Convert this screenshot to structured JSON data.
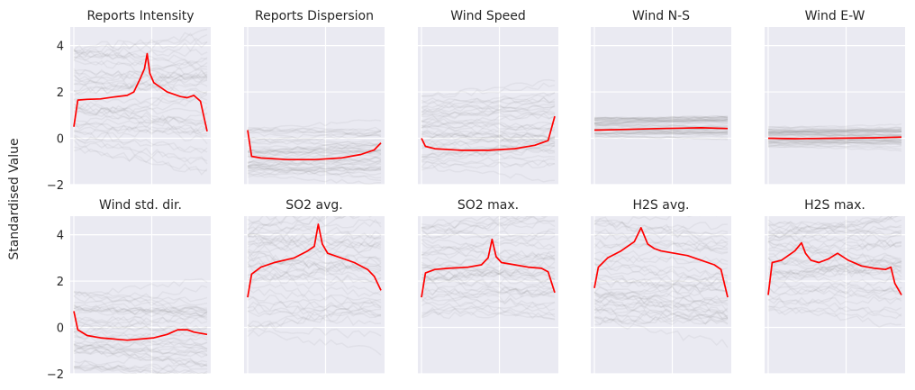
{
  "figure": {
    "ylabel": "Standardised Value",
    "background": "#eaeaf2",
    "grid_color": "#ffffff",
    "mean_color": "#ff0000",
    "trace_color": "#808080"
  },
  "chart_data": [
    {
      "type": "line",
      "title": "Reports Intensity",
      "ylim": [
        -2,
        4.8
      ],
      "yticks": [
        -2,
        0,
        2,
        4
      ],
      "grid": true,
      "x": [
        0,
        0.03,
        0.1,
        0.2,
        0.3,
        0.4,
        0.45,
        0.5,
        0.53,
        0.55,
        0.57,
        0.6,
        0.7,
        0.8,
        0.85,
        0.9,
        0.95,
        1
      ],
      "series": [
        {
          "name": "",
          "values": [
            0.5,
            1.65,
            1.68,
            1.7,
            1.78,
            1.85,
            2.0,
            2.6,
            3.0,
            3.65,
            2.8,
            2.4,
            2.0,
            1.8,
            1.75,
            1.85,
            1.6,
            0.3
          ]
        }
      ],
      "band": [
        -0.6,
        3.9
      ]
    },
    {
      "type": "line",
      "title": "Reports Dispersion",
      "ylim": [
        -2,
        4.8
      ],
      "yticks": [
        -2,
        0,
        2,
        4
      ],
      "grid": true,
      "x": [
        0,
        0.03,
        0.1,
        0.3,
        0.5,
        0.7,
        0.85,
        0.95,
        1
      ],
      "series": [
        {
          "name": "",
          "values": [
            0.35,
            -0.78,
            -0.85,
            -0.92,
            -0.92,
            -0.85,
            -0.7,
            -0.5,
            -0.2
          ]
        }
      ],
      "band": [
        -1.6,
        0.5
      ]
    },
    {
      "type": "line",
      "title": "Wind Speed",
      "ylim": [
        -2,
        4.8
      ],
      "yticks": [
        -2,
        0,
        2,
        4
      ],
      "grid": true,
      "x": [
        0,
        0.03,
        0.1,
        0.3,
        0.5,
        0.7,
        0.85,
        0.95,
        1
      ],
      "series": [
        {
          "name": "",
          "values": [
            0.0,
            -0.35,
            -0.45,
            -0.52,
            -0.52,
            -0.45,
            -0.3,
            -0.1,
            0.95
          ]
        }
      ],
      "band": [
        -1.3,
        1.8
      ]
    },
    {
      "type": "line",
      "title": "Wind N-S",
      "ylim": [
        -2,
        4.8
      ],
      "yticks": [
        -2,
        0,
        2,
        4
      ],
      "grid": true,
      "x": [
        0,
        0.2,
        0.5,
        0.8,
        1
      ],
      "series": [
        {
          "name": "",
          "values": [
            0.35,
            0.38,
            0.42,
            0.45,
            0.42
          ]
        }
      ],
      "band": [
        0.0,
        0.9
      ]
    },
    {
      "type": "line",
      "title": "Wind E-W",
      "ylim": [
        -2,
        4.8
      ],
      "yticks": [
        -2,
        0,
        2,
        4
      ],
      "grid": true,
      "x": [
        0,
        0.2,
        0.5,
        0.8,
        1
      ],
      "series": [
        {
          "name": "",
          "values": [
            0.0,
            -0.02,
            0.0,
            0.02,
            0.05
          ]
        }
      ],
      "band": [
        -0.4,
        0.5
      ]
    },
    {
      "type": "line",
      "title": "Wind std. dir.",
      "ylim": [
        -2,
        4.8
      ],
      "yticks": [
        -2,
        0,
        2,
        4
      ],
      "grid": true,
      "x": [
        0,
        0.03,
        0.1,
        0.2,
        0.4,
        0.6,
        0.7,
        0.78,
        0.85,
        0.9,
        1
      ],
      "series": [
        {
          "name": "",
          "values": [
            0.7,
            -0.1,
            -0.35,
            -0.45,
            -0.55,
            -0.45,
            -0.3,
            -0.1,
            -0.1,
            -0.2,
            -0.3
          ]
        }
      ],
      "band": [
        -1.8,
        1.6
      ]
    },
    {
      "type": "line",
      "title": "SO2 avg.",
      "ylim": [
        -2,
        4.8
      ],
      "yticks": [
        -2,
        0,
        2,
        4
      ],
      "grid": true,
      "x": [
        0,
        0.03,
        0.1,
        0.2,
        0.35,
        0.45,
        0.5,
        0.53,
        0.56,
        0.6,
        0.7,
        0.8,
        0.9,
        0.95,
        1
      ],
      "series": [
        {
          "name": "",
          "values": [
            1.3,
            2.3,
            2.6,
            2.8,
            3.0,
            3.3,
            3.5,
            4.45,
            3.6,
            3.2,
            3.0,
            2.8,
            2.5,
            2.2,
            1.6
          ]
        }
      ],
      "band": [
        -0.3,
        4.6
      ]
    },
    {
      "type": "line",
      "title": "SO2 max.",
      "ylim": [
        -2,
        4.8
      ],
      "yticks": [
        -2,
        0,
        2,
        4
      ],
      "grid": true,
      "x": [
        0,
        0.03,
        0.1,
        0.2,
        0.35,
        0.45,
        0.5,
        0.53,
        0.56,
        0.6,
        0.7,
        0.8,
        0.9,
        0.95,
        1
      ],
      "series": [
        {
          "name": "",
          "values": [
            1.3,
            2.35,
            2.5,
            2.55,
            2.6,
            2.7,
            3.0,
            3.8,
            3.05,
            2.8,
            2.7,
            2.6,
            2.55,
            2.4,
            1.5
          ]
        }
      ],
      "band": [
        0.5,
        4.5
      ]
    },
    {
      "type": "line",
      "title": "H2S avg.",
      "ylim": [
        -2,
        4.8
      ],
      "yticks": [
        -2,
        0,
        2,
        4
      ],
      "grid": true,
      "x": [
        0,
        0.03,
        0.1,
        0.2,
        0.3,
        0.35,
        0.4,
        0.45,
        0.5,
        0.6,
        0.7,
        0.8,
        0.9,
        0.95,
        1
      ],
      "series": [
        {
          "name": "",
          "values": [
            1.7,
            2.6,
            3.0,
            3.3,
            3.7,
            4.3,
            3.6,
            3.4,
            3.3,
            3.2,
            3.1,
            2.9,
            2.7,
            2.5,
            1.3
          ]
        }
      ],
      "band": [
        0.2,
        4.7
      ]
    },
    {
      "type": "line",
      "title": "H2S max.",
      "ylim": [
        -2,
        4.8
      ],
      "yticks": [
        -2,
        0,
        2,
        4
      ],
      "grid": true,
      "x": [
        0,
        0.03,
        0.1,
        0.2,
        0.25,
        0.28,
        0.32,
        0.38,
        0.45,
        0.52,
        0.6,
        0.7,
        0.8,
        0.88,
        0.92,
        0.95,
        1
      ],
      "series": [
        {
          "name": "",
          "values": [
            1.4,
            2.8,
            2.9,
            3.3,
            3.65,
            3.2,
            2.9,
            2.8,
            2.95,
            3.2,
            2.9,
            2.65,
            2.55,
            2.5,
            2.6,
            1.9,
            1.4
          ]
        }
      ],
      "band": [
        0.5,
        4.7
      ]
    }
  ]
}
